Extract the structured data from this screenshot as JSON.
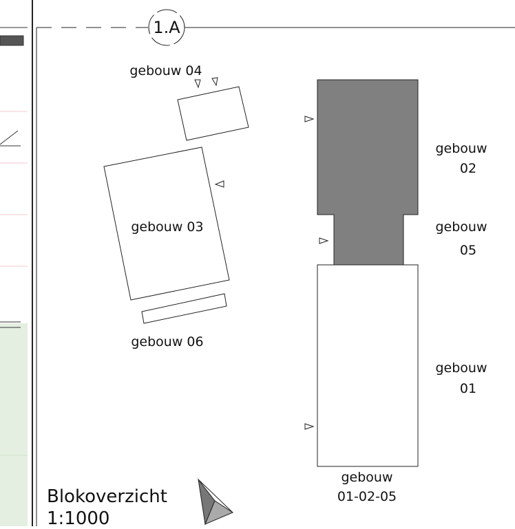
{
  "grid_marker": "1.A",
  "buildings": {
    "b04": {
      "label": "gebouw 04"
    },
    "b03": {
      "label": "gebouw 03"
    },
    "b06": {
      "label": "gebouw 06"
    },
    "b02": {
      "lines": [
        "gebouw",
        "02"
      ]
    },
    "b05": {
      "lines": [
        "gebouw",
        "05"
      ]
    },
    "b01": {
      "lines": [
        "gebouw",
        "01"
      ]
    },
    "combined": {
      "lines": [
        "gebouw",
        "01-02-05"
      ]
    }
  },
  "title": {
    "name": "Blokoverzicht",
    "scale": "1:1000"
  }
}
